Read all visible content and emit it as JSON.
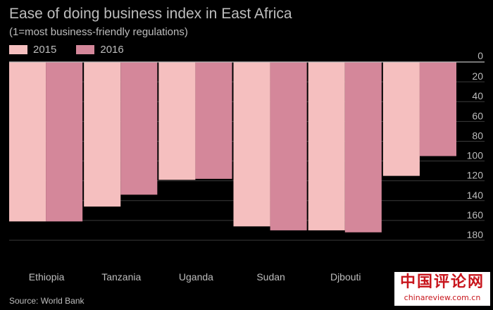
{
  "chart_data": {
    "type": "bar",
    "title": "Ease of doing business index in East Africa",
    "subtitle": "(1=most business-friendly regulations)",
    "categories": [
      "Ethiopia",
      "Tanzania",
      "Uganda",
      "Sudan",
      "Djbouti",
      ""
    ],
    "series": [
      {
        "name": "2015",
        "values": [
          161,
          146,
          119,
          166,
          170,
          115
        ],
        "color": "#f5bfbf"
      },
      {
        "name": "2016",
        "values": [
          161,
          134,
          118,
          170,
          172,
          95
        ],
        "color": "#d4879a"
      }
    ],
    "y_axis": {
      "inverted": true,
      "position": "right",
      "ylim": [
        0,
        180
      ],
      "ticks": [
        0,
        20,
        40,
        60,
        80,
        100,
        120,
        140,
        160,
        180
      ]
    },
    "grid": true,
    "legend_position": "top-left"
  },
  "source": "Source: World Bank",
  "watermark": {
    "text": "中国评论网",
    "url": "chinareview.com.cn"
  }
}
